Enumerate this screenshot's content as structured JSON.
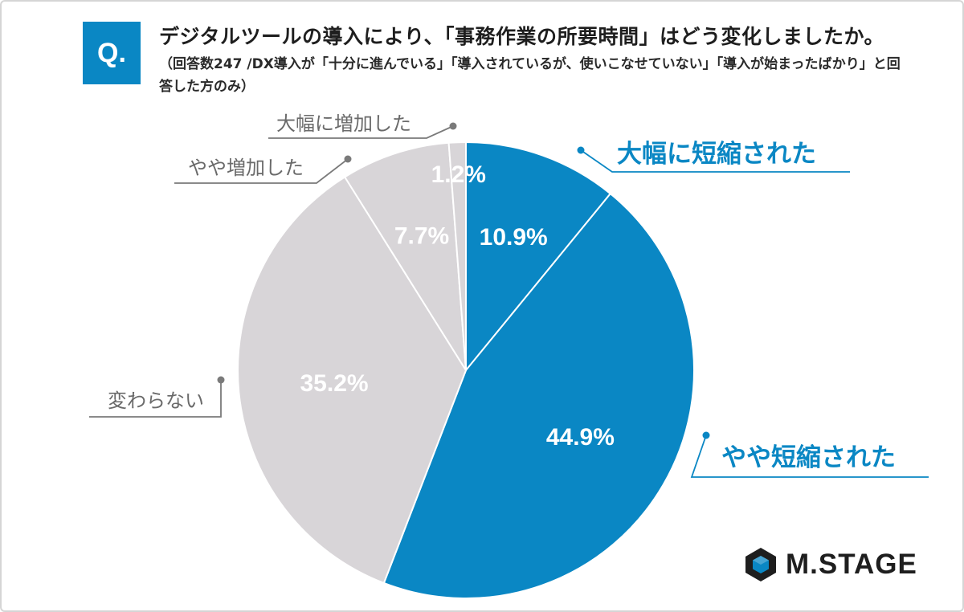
{
  "header": {
    "badge": "Q.",
    "title": "デジタルツールの導入により、「事務作業の所要時間」はどう変化しましたか。",
    "subtitle": "（回答数247 /DX導入が「十分に進んでいる」「導入されているが、使いこなせていない」「導入が始まったばかり」と回答した方のみ）"
  },
  "colors": {
    "blue": "#0a87c4",
    "gray": "#d8d5d8",
    "label_gray": "#6a6a6a",
    "leader_gray": "#7a7a7a"
  },
  "chart_data": {
    "type": "pie",
    "title": "",
    "start": "12 o'clock",
    "direction": "clockwise",
    "slices": [
      {
        "label": "大幅に短縮された",
        "value": 10.9,
        "value_label": "10.9%",
        "color": "#0a87c4"
      },
      {
        "label": "やや短縮された",
        "value": 44.9,
        "value_label": "44.9%",
        "color": "#0a87c4"
      },
      {
        "label": "変わらない",
        "value": 35.2,
        "value_label": "35.2%",
        "color": "#d8d5d8"
      },
      {
        "label": "やや増加した",
        "value": 7.7,
        "value_label": "7.7%",
        "color": "#d8d5d8"
      },
      {
        "label": "大幅に増加した",
        "value": 1.2,
        "value_label": "1.2%",
        "color": "#d8d5d8"
      }
    ]
  },
  "logo": {
    "text": "M.STAGE",
    "icon": "hexagon-logo-icon"
  }
}
